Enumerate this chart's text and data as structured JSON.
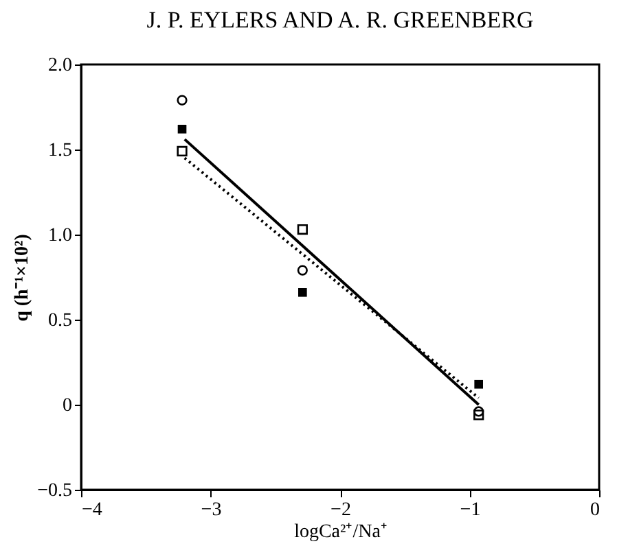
{
  "chart_data": {
    "type": "scatter",
    "title": "J. P. EYLERS AND A. R. GREENBERG",
    "xlabel": "logCa²⁺/Na⁺",
    "ylabel": "q (h⁻¹×10²)",
    "xlim": [
      -4,
      0
    ],
    "ylim": [
      -0.5,
      2.0
    ],
    "xticks": [
      {
        "value": -4,
        "label": "−4"
      },
      {
        "value": -3,
        "label": "−3"
      },
      {
        "value": -2,
        "label": "−2"
      },
      {
        "value": -1,
        "label": "−1"
      },
      0
    ],
    "yticks": [
      -0.5,
      0,
      0.5,
      {
        "value": 1.0,
        "label": "1.0"
      },
      1.5,
      {
        "value": 2.0,
        "label": "2.0"
      }
    ],
    "grid": false,
    "series": [
      {
        "marker": "circle",
        "x": [
          -3.22,
          -2.29,
          -0.93
        ],
        "values": [
          1.79,
          0.79,
          -0.04
        ]
      },
      {
        "marker": "square",
        "color": "#000000",
        "x": [
          -3.22,
          -2.29,
          -0.93
        ],
        "values": [
          1.62,
          0.66,
          0.12
        ]
      },
      {
        "marker": "square",
        "x": [
          -3.22,
          -2.29,
          -0.93
        ],
        "values": [
          1.49,
          1.03,
          -0.06
        ]
      },
      {
        "type": "line",
        "line_style": "solid",
        "color": "#000000",
        "x": [
          -3.2,
          -0.93
        ],
        "values": [
          1.56,
          0.0
        ]
      },
      {
        "type": "line",
        "line_style": "dotted",
        "color": "#000000",
        "x": [
          -3.2,
          -0.93
        ],
        "values": [
          1.45,
          0.04
        ]
      }
    ]
  }
}
